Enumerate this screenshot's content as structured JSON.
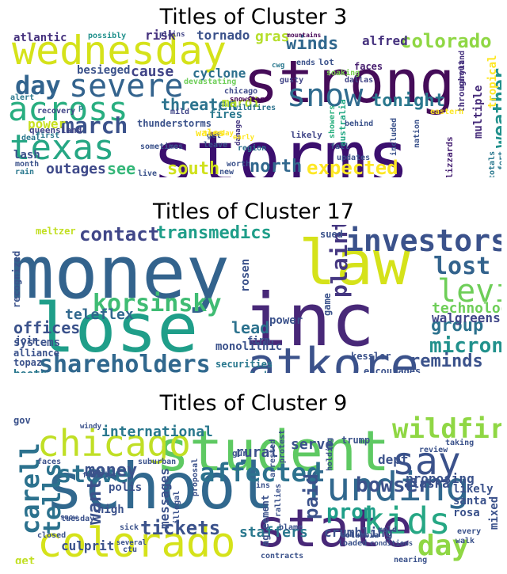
{
  "panels": [
    {
      "title": "Titles of Cluster 3",
      "words": [
        {
          "t": "storms",
          "c": "#3b0f6f",
          "v": false
        },
        {
          "t": "strong",
          "c": "#450c59",
          "v": false
        },
        {
          "t": "wednesday",
          "c": "#d5e21a",
          "v": false
        },
        {
          "t": "texas",
          "c": "#26a784",
          "v": false
        },
        {
          "t": "across",
          "c": "#28ae80",
          "v": false
        },
        {
          "t": "severe",
          "c": "#33638d",
          "v": false
        },
        {
          "t": "snow",
          "c": "#2f6b8e",
          "v": false
        },
        {
          "t": "march",
          "c": "#3b528b",
          "v": false
        },
        {
          "t": "day",
          "c": "#32648e",
          "v": false
        },
        {
          "t": "expected",
          "c": "#fde725",
          "v": false
        },
        {
          "t": "colorado",
          "c": "#8fd744",
          "v": false
        },
        {
          "t": "winds",
          "c": "#31688e",
          "v": false
        },
        {
          "t": "tonight",
          "c": "#2a788e",
          "v": false
        },
        {
          "t": "weather",
          "c": "#21918c",
          "v": true
        },
        {
          "t": "north",
          "c": "#31688e",
          "v": false
        },
        {
          "t": "south",
          "c": "#d0e11c",
          "v": false
        },
        {
          "t": "widespread",
          "c": "#3e4989",
          "v": false
        },
        {
          "t": "threaten",
          "c": "#2c738e",
          "v": false
        },
        {
          "t": "outages",
          "c": "#3e4989",
          "v": false
        },
        {
          "t": "cause",
          "c": "#414487",
          "v": false
        },
        {
          "t": "power",
          "c": "#c8e020",
          "v": false
        },
        {
          "t": "mardi",
          "c": "#b5de2b",
          "v": false
        },
        {
          "t": "gras",
          "c": "#b5de2b",
          "v": false
        },
        {
          "t": "risk",
          "c": "#46327e",
          "v": false
        },
        {
          "t": "tornado",
          "c": "#3b528b",
          "v": false
        },
        {
          "t": "cyclone",
          "c": "#2d708e",
          "v": false
        },
        {
          "t": "besieged",
          "c": "#3b528b",
          "v": false
        },
        {
          "t": "atlantic",
          "c": "#46327e",
          "v": false
        },
        {
          "t": "alfred",
          "c": "#46327e",
          "v": false
        },
        {
          "t": "lash",
          "c": "#3b528b",
          "v": false
        },
        {
          "t": "fires",
          "c": "#2a788e",
          "v": false
        },
        {
          "t": "see",
          "c": "#35b779",
          "v": false
        },
        {
          "t": "multiple",
          "c": "#472d7b",
          "v": true
        },
        {
          "t": "tropical",
          "c": "#fde725",
          "v": true
        },
        {
          "t": "blizzards",
          "c": "#482374",
          "v": true
        },
        {
          "t": "faces",
          "c": "#481f70",
          "v": false
        },
        {
          "t": "queensland",
          "c": "#414487",
          "v": false
        },
        {
          "t": "recovery",
          "c": "#414487",
          "v": false
        },
        {
          "t": "devastating",
          "c": "#6ece58",
          "v": false
        },
        {
          "t": "mountains",
          "c": "#440154",
          "v": false
        },
        {
          "t": "plains",
          "c": "#414487",
          "v": false
        },
        {
          "t": "possibly",
          "c": "#21918c",
          "v": false
        },
        {
          "t": "soaking",
          "c": "#7ad151",
          "v": false
        },
        {
          "t": "dallas",
          "c": "#414487",
          "v": false
        },
        {
          "t": "maryland",
          "c": "#46327e",
          "v": true
        },
        {
          "t": "throughout",
          "c": "#46327e",
          "v": true
        },
        {
          "t": "gusty",
          "c": "#414487",
          "v": false
        },
        {
          "t": "chicago",
          "c": "#3e4989",
          "v": false
        },
        {
          "t": "wildfires",
          "c": "#2c728e",
          "v": false
        },
        {
          "t": "snowstorm",
          "c": "#440154",
          "v": false
        },
        {
          "t": "australia",
          "c": "#22a884",
          "v": true
        },
        {
          "t": "showers",
          "c": "#2ab07f",
          "v": true
        },
        {
          "t": "damage",
          "c": "#453781",
          "v": true
        },
        {
          "t": "mild",
          "c": "#404688",
          "v": false
        },
        {
          "t": "wales",
          "c": "#fde725",
          "v": false
        },
        {
          "t": "get",
          "c": "#3b528b",
          "v": false
        },
        {
          "t": "leave",
          "c": "#3b528b",
          "v": false
        },
        {
          "t": "region",
          "c": "#2d708e",
          "v": false
        },
        {
          "t": "likely",
          "c": "#404688",
          "v": false
        },
        {
          "t": "behind",
          "c": "#3b528b",
          "v": false
        },
        {
          "t": "fall",
          "c": "#3b528b",
          "v": false
        },
        {
          "t": "updates",
          "c": "#3b528b",
          "v": false
        },
        {
          "t": "nation",
          "c": "#3b528b",
          "v": true
        },
        {
          "t": "included",
          "c": "#3b528b",
          "v": true
        },
        {
          "t": "eastern",
          "c": "#fde725",
          "v": false
        },
        {
          "t": "totals",
          "c": "#2a788e",
          "v": true
        },
        {
          "t": "fort",
          "c": "#2a788e",
          "v": true
        },
        {
          "t": "thunderstorms",
          "c": "#3b528b",
          "v": false
        },
        {
          "t": "sometimes",
          "c": "#3b528b",
          "v": false
        },
        {
          "t": "live",
          "c": "#3b528b",
          "v": false
        },
        {
          "t": "new",
          "c": "#3b528b",
          "v": false
        },
        {
          "t": "worth",
          "c": "#3b528b",
          "v": false
        },
        {
          "t": "tuesday",
          "c": "#fde725",
          "v": false
        },
        {
          "t": "early",
          "c": "#fde725",
          "v": false
        },
        {
          "t": "deal",
          "c": "#2a788e",
          "v": false
        },
        {
          "t": "first",
          "c": "#2a788e",
          "v": false
        },
        {
          "t": "month",
          "c": "#3b528b",
          "v": false
        },
        {
          "t": "rain",
          "c": "#2a788e",
          "v": false
        },
        {
          "t": "alert",
          "c": "#2a788e",
          "v": false
        },
        {
          "t": "ends",
          "c": "#3b528b",
          "v": false
        },
        {
          "t": "lot",
          "c": "#3b528b",
          "v": false
        },
        {
          "t": "cwg",
          "c": "#2a788e",
          "v": false
        },
        {
          "t": "p",
          "c": "#2a788e",
          "v": false
        }
      ]
    },
    {
      "title": "Titles of Cluster 17",
      "words": [
        {
          "t": "money",
          "c": "#33638d",
          "v": false
        },
        {
          "t": "lose",
          "c": "#1f9e89",
          "v": false
        },
        {
          "t": "law",
          "c": "#d5e21a",
          "v": false
        },
        {
          "t": "inc",
          "c": "#482878",
          "v": false
        },
        {
          "t": "atkore",
          "c": "#3b528b",
          "v": false
        },
        {
          "t": "investors",
          "c": "#3b528b",
          "v": false
        },
        {
          "t": "shareholders",
          "c": "#31688e",
          "v": false
        },
        {
          "t": "levi",
          "c": "#6ece58",
          "v": false
        },
        {
          "t": "lost",
          "c": "#33638d",
          "v": false
        },
        {
          "t": "korsinsky",
          "c": "#3fbc73",
          "v": false
        },
        {
          "t": "plaintiff",
          "c": "#453781",
          "v": true
        },
        {
          "t": "transmedics",
          "c": "#1f9e89",
          "v": false
        },
        {
          "t": "contact",
          "c": "#404688",
          "v": false
        },
        {
          "t": "micron",
          "c": "#21918c",
          "v": false
        },
        {
          "t": "group",
          "c": "#2c728e",
          "v": false
        },
        {
          "t": "reminds",
          "c": "#3b528b",
          "v": false
        },
        {
          "t": "lead",
          "c": "#2c728e",
          "v": false
        },
        {
          "t": "technology",
          "c": "#6ece58",
          "v": false
        },
        {
          "t": "walgreens",
          "c": "#404688",
          "v": false
        },
        {
          "t": "teleflex",
          "c": "#31688e",
          "v": false
        },
        {
          "t": "offices",
          "c": "#3b528b",
          "v": false
        },
        {
          "t": "systems",
          "c": "#3b528b",
          "v": false
        },
        {
          "t": "alliance",
          "c": "#3b528b",
          "v": false
        },
        {
          "t": "topaz",
          "c": "#3b528b",
          "v": false
        },
        {
          "t": "boots",
          "c": "#2a788e",
          "v": false
        },
        {
          "t": "recognized",
          "c": "#3b528b",
          "v": true
        },
        {
          "t": "meltzer",
          "c": "#c2df23",
          "v": false
        },
        {
          "t": "join",
          "c": "#3b528b",
          "v": false
        },
        {
          "t": "monolithic",
          "c": "#3b528b",
          "v": false
        },
        {
          "t": "securities",
          "c": "#2a788e",
          "v": false
        },
        {
          "t": "incorporated",
          "c": "#2a788e",
          "v": false
        },
        {
          "t": "highly",
          "c": "#3b528b",
          "v": false
        },
        {
          "t": "mpwr",
          "c": "#3b528b",
          "v": false
        },
        {
          "t": "firm",
          "c": "#3b528b",
          "v": false
        },
        {
          "t": "power",
          "c": "#3b528b",
          "v": false
        },
        {
          "t": "rosen",
          "c": "#3b528b",
          "v": true
        },
        {
          "t": "sued",
          "c": "#3b528b",
          "v": false
        },
        {
          "t": "game",
          "c": "#3b528b",
          "v": true
        },
        {
          "t": "kessler",
          "c": "#3b528b",
          "v": false
        },
        {
          "t": "encourages",
          "c": "#3b528b",
          "v": false
        }
      ]
    },
    {
      "title": "Titles of Cluster 9",
      "words": [
        {
          "t": "school",
          "c": "#31688e",
          "v": false
        },
        {
          "t": "student",
          "c": "#5ec962",
          "v": false
        },
        {
          "t": "state",
          "c": "#482878",
          "v": false
        },
        {
          "t": "colorado",
          "c": "#d5e21a",
          "v": false
        },
        {
          "t": "funding",
          "c": "#31688e",
          "v": false
        },
        {
          "t": "chicago",
          "c": "#c0df25",
          "v": false
        },
        {
          "t": "say",
          "c": "#3b528b",
          "v": false
        },
        {
          "t": "kids",
          "c": "#26a784",
          "v": false
        },
        {
          "t": "wildfires",
          "c": "#8fd744",
          "v": false
        },
        {
          "t": "affected",
          "c": "#2c728e",
          "v": false
        },
        {
          "t": "steve",
          "c": "#2c728e",
          "v": false
        },
        {
          "t": "tells",
          "c": "#2c728e",
          "v": true
        },
        {
          "t": "carell",
          "c": "#2c728e",
          "v": true
        },
        {
          "t": "bowser",
          "c": "#3b528b",
          "v": false
        },
        {
          "t": "prom",
          "c": "#1f9e89",
          "v": false
        },
        {
          "t": "day",
          "c": "#8fd744",
          "v": false
        },
        {
          "t": "money",
          "c": "#3b528b",
          "v": false
        },
        {
          "t": "tickets",
          "c": "#3b528b",
          "v": false
        },
        {
          "t": "wants",
          "c": "#3b528b",
          "v": true
        },
        {
          "t": "paid",
          "c": "#3b528b",
          "v": true
        },
        {
          "t": "international",
          "c": "#2a788e",
          "v": false
        },
        {
          "t": "rural",
          "c": "#3b528b",
          "v": false
        },
        {
          "t": "serve",
          "c": "#3b528b",
          "v": false
        },
        {
          "t": "proposing",
          "c": "#3b528b",
          "v": false
        },
        {
          "t": "dept",
          "c": "#3b528b",
          "v": false
        },
        {
          "t": "alaska",
          "c": "#3b528b",
          "v": false
        },
        {
          "t": "staffers",
          "c": "#2a788e",
          "v": false
        },
        {
          "t": "crumbling",
          "c": "#3b528b",
          "v": false
        },
        {
          "t": "speaker",
          "c": "#3b528b",
          "v": false
        },
        {
          "t": "messages",
          "c": "#3b528b",
          "v": true
        },
        {
          "t": "polis",
          "c": "#3b528b",
          "v": false
        },
        {
          "t": "high",
          "c": "#3b528b",
          "v": false
        },
        {
          "t": "culprit",
          "c": "#3b528b",
          "v": false
        },
        {
          "t": "mixed",
          "c": "#3b528b",
          "v": true
        },
        {
          "t": "likely",
          "c": "#3b528b",
          "v": false
        },
        {
          "t": "santa",
          "c": "#3b528b",
          "v": false
        },
        {
          "t": "rosa",
          "c": "#3b528b",
          "v": false
        },
        {
          "t": "gov",
          "c": "#3b528b",
          "v": false
        },
        {
          "t": "get",
          "c": "#c2df23",
          "v": false
        },
        {
          "t": "allows",
          "c": "#3b528b",
          "v": false
        },
        {
          "t": "plains",
          "c": "#3b528b",
          "v": false
        },
        {
          "t": "trump",
          "c": "#3b528b",
          "v": false
        },
        {
          "t": "gun",
          "c": "#3b528b",
          "v": false
        },
        {
          "t": "faces",
          "c": "#3b528b",
          "v": false
        },
        {
          "t": "suburban",
          "c": "#3b528b",
          "v": false
        },
        {
          "t": "families",
          "c": "#3b528b",
          "v": false
        },
        {
          "t": "arrested",
          "c": "#3b528b",
          "v": true
        },
        {
          "t": "protest",
          "c": "#3b528b",
          "v": true
        },
        {
          "t": "illegal",
          "c": "#3b528b",
          "v": true
        },
        {
          "t": "proposal",
          "c": "#3b528b",
          "v": true
        },
        {
          "t": "agreement",
          "c": "#3b528b",
          "v": true
        },
        {
          "t": "loaded",
          "c": "#3b528b",
          "v": false
        },
        {
          "t": "columbia",
          "c": "#3b528b",
          "v": false
        },
        {
          "t": "taking",
          "c": "#3b528b",
          "v": false
        },
        {
          "t": "review",
          "c": "#3b528b",
          "v": false
        },
        {
          "t": "every",
          "c": "#3b528b",
          "v": false
        },
        {
          "t": "walk",
          "c": "#3b528b",
          "v": false
        },
        {
          "t": "nearing",
          "c": "#3b528b",
          "v": false
        },
        {
          "t": "lose",
          "c": "#3b528b",
          "v": false
        },
        {
          "t": "eastern",
          "c": "#3b528b",
          "v": false
        },
        {
          "t": "federal",
          "c": "#3b528b",
          "v": false
        },
        {
          "t": "northwest",
          "c": "#fde725",
          "v": false
        },
        {
          "t": "contracts",
          "c": "#3b528b",
          "v": false
        },
        {
          "t": "ctu",
          "c": "#3b528b",
          "v": false
        },
        {
          "t": "several",
          "c": "#3b528b",
          "v": false
        },
        {
          "t": "sick",
          "c": "#3b528b",
          "v": false
        },
        {
          "t": "blame",
          "c": "#3b528b",
          "v": false
        },
        {
          "t": "mold",
          "c": "#3b528b",
          "v": false
        },
        {
          "t": "closed",
          "c": "#3b528b",
          "v": false
        },
        {
          "t": "tuesday",
          "c": "#3b528b",
          "v": false
        },
        {
          "t": "snow",
          "c": "#3b528b",
          "v": false
        },
        {
          "t": "due",
          "c": "#3b528b",
          "v": false
        },
        {
          "t": "windy",
          "c": "#3b528b",
          "v": false
        },
        {
          "t": "ins",
          "c": "#3b528b",
          "v": false
        },
        {
          "t": "holding",
          "c": "#3b528b",
          "v": true
        },
        {
          "t": "rallies",
          "c": "#3b528b",
          "v": true
        },
        {
          "t": "conditions",
          "c": "#3b528b",
          "v": false
        }
      ]
    }
  ]
}
